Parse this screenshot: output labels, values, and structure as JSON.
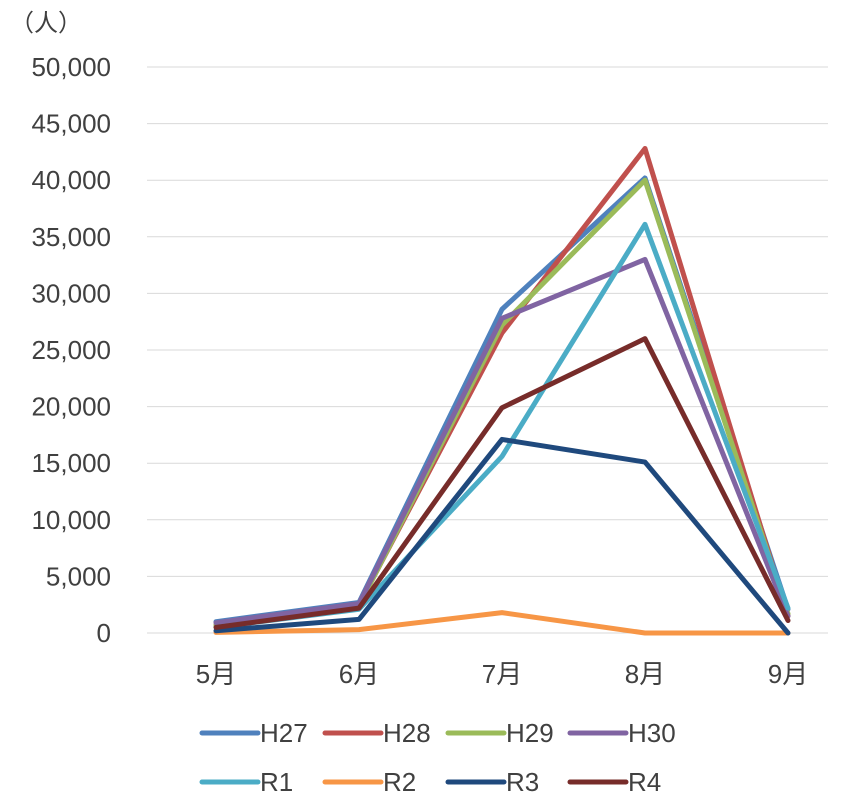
{
  "chart_data": {
    "type": "line",
    "unit_label": "（人）",
    "categories": [
      "5月",
      "6月",
      "7月",
      "8月",
      "9月"
    ],
    "ylim": [
      0,
      50000
    ],
    "y_ticks": [
      0,
      5000,
      10000,
      15000,
      20000,
      25000,
      30000,
      35000,
      40000,
      45000,
      50000
    ],
    "y_tick_labels": [
      "0",
      "5,000",
      "10,000",
      "15,000",
      "20,000",
      "25,000",
      "30,000",
      "35,000",
      "40,000",
      "45,000",
      "50,000"
    ],
    "grid": true,
    "legend_position": "bottom",
    "series": [
      {
        "name": "H27",
        "color": "#4f81bd",
        "values": [
          1000,
          2700,
          28600,
          40200,
          2100
        ]
      },
      {
        "name": "H28",
        "color": "#c0504d",
        "values": [
          700,
          2500,
          26500,
          42800,
          1500
        ]
      },
      {
        "name": "H29",
        "color": "#9bbb59",
        "values": [
          700,
          2400,
          27200,
          40000,
          1700
        ]
      },
      {
        "name": "H30",
        "color": "#8064a2",
        "values": [
          900,
          2600,
          27800,
          33000,
          1500
        ]
      },
      {
        "name": "R1",
        "color": "#4bacc6",
        "values": [
          500,
          2100,
          15600,
          36100,
          2200
        ]
      },
      {
        "name": "R2",
        "color": "#f79646",
        "values": [
          50,
          300,
          1800,
          0,
          0
        ]
      },
      {
        "name": "R3",
        "color": "#1f497d",
        "values": [
          200,
          1200,
          17100,
          15100,
          0
        ]
      },
      {
        "name": "R4",
        "color": "#772c2a",
        "values": [
          500,
          2200,
          19900,
          26000,
          1100
        ]
      }
    ]
  }
}
